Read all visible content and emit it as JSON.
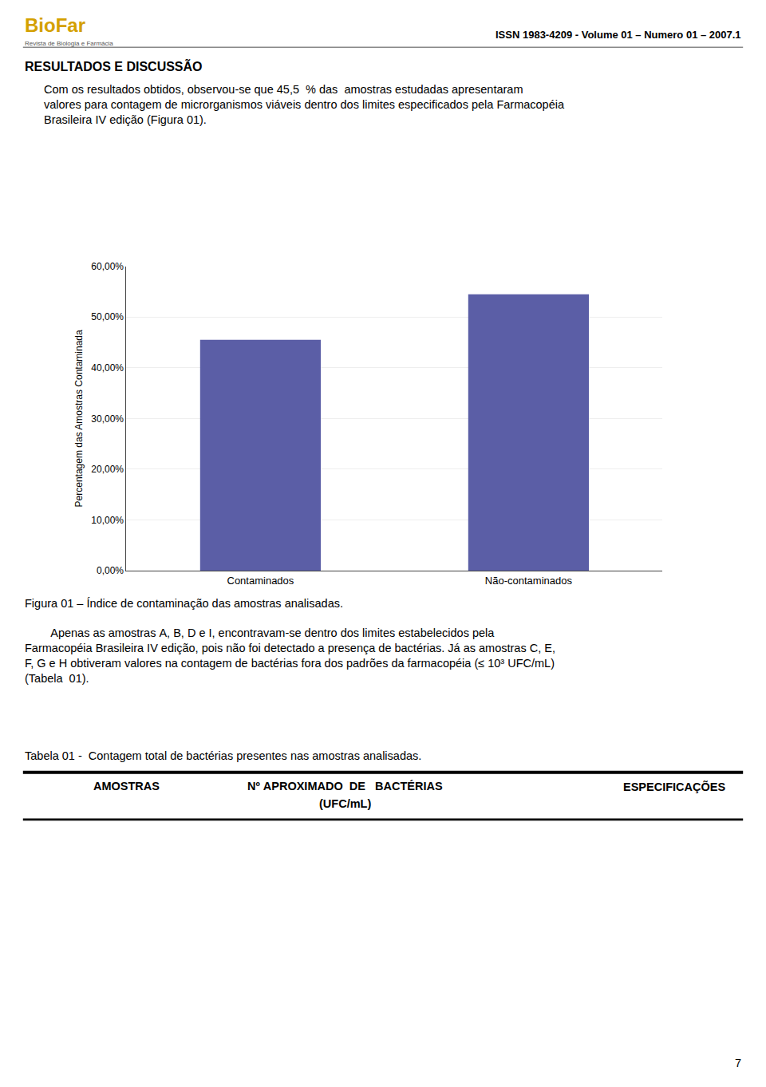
{
  "chart_data": {
    "type": "bar",
    "categories": [
      "Contaminados",
      "Não-contaminados"
    ],
    "values": [
      45.5,
      54.5
    ],
    "color": "#5b5ea6",
    "ylabel": "Percentagem das Amostras Contaminada",
    "ylim": [
      0,
      60
    ],
    "yticks": [
      {
        "value": 0,
        "label": "0,00%"
      },
      {
        "value": 10,
        "label": "10,00%"
      },
      {
        "value": 20,
        "label": "20,00%"
      },
      {
        "value": 30,
        "label": "30,00%"
      },
      {
        "value": 40,
        "label": "40,00%"
      },
      {
        "value": 50,
        "label": "50,00%"
      },
      {
        "value": 60,
        "label": "60,00%"
      }
    ],
    "grid": true,
    "annotations": [
      "BioFar",
      "Revista de Biologia e Farmácia",
      "ISSN 1983-4209 - Volume 01 – Numero 01 – 2007.1",
      "RESULTADOS E DISCUSSÃO",
      "Com os resultados obtidos, observou-se que 45,5  % das  amostras estudadas apresentaram\nvalores para contagem de microrganismos viáveis dentro dos limites especificados pela Farmacopéia\nBrasileira IV edição (Figura 01).",
      "Figura 01 – Índice de contaminação das amostras analisadas.",
      "        Apenas as amostras A, B, D e I, encontravam-se dentro dos limites estabelecidos pela\nFarmacopéia Brasileira IV edição, pois não foi detectado a presença de bactérias. Já as amostras C, E,\nF, G e H obtiveram valores na contagem de bactérias fora dos padrões da farmacopéia (≤ 10³ UFC/mL)\n(Tabela  01).",
      "Tabela 01 -  Contagem total de bactérias presentes nas amostras analisadas.",
      "AMOSTRAS",
      "Nº APROXIMADO  DE   BACTÉRIAS",
      "(UFC/mL)",
      "ESPECIFICAÇÕES",
      "7"
    ]
  }
}
